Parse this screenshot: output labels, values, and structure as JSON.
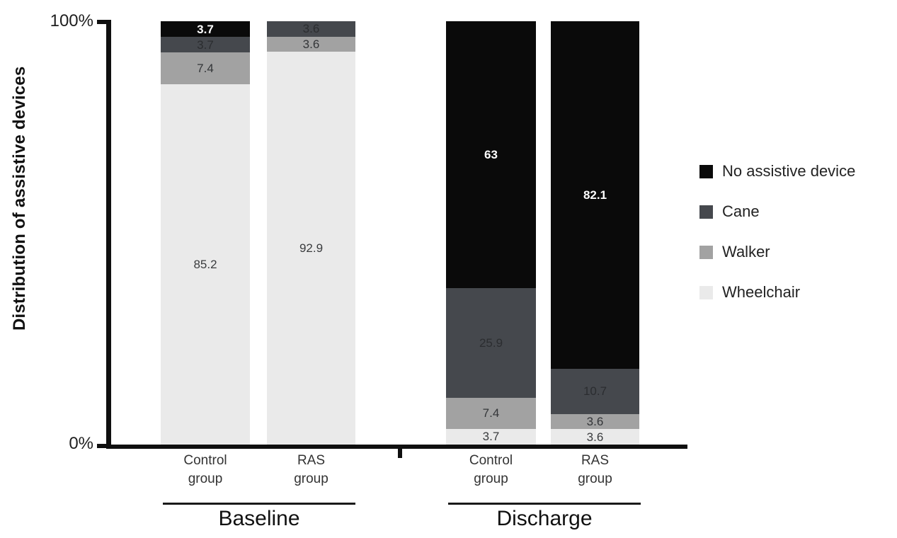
{
  "figure": {
    "background": "#ffffff",
    "axis_color": "#0f0f0f"
  },
  "chart_data": {
    "type": "bar",
    "stacked": true,
    "unit": "percent",
    "ylabel": "Distribution of assistive devices",
    "ylim": [
      0,
      100
    ],
    "ytick_labels": [
      "0%",
      "100%"
    ],
    "grid": false,
    "legend_position": "right",
    "groups": [
      "Baseline",
      "Discharge"
    ],
    "categories": [
      {
        "group": "Baseline",
        "label_lines": [
          "Control",
          "group"
        ]
      },
      {
        "group": "Baseline",
        "label_lines": [
          "RAS",
          "group"
        ]
      },
      {
        "group": "Discharge",
        "label_lines": [
          "Control",
          "group"
        ]
      },
      {
        "group": "Discharge",
        "label_lines": [
          "RAS",
          "group"
        ]
      }
    ],
    "series": [
      {
        "name": "No assistive device",
        "color": "#0a0a0a",
        "label_color": "#ffffff",
        "values": [
          3.7,
          0,
          63,
          82.1
        ]
      },
      {
        "name": "Cane",
        "color": "#45484d",
        "label_color": "#2b2d30",
        "values": [
          3.7,
          3.6,
          25.9,
          10.7
        ]
      },
      {
        "name": "Walker",
        "color": "#a2a2a2",
        "label_color": "#333538",
        "values": [
          7.4,
          3.6,
          7.4,
          3.6
        ]
      },
      {
        "name": "Wheelchair",
        "color": "#eaeaea",
        "label_color": "#3a3c3e",
        "values": [
          85.2,
          92.9,
          3.7,
          3.6
        ]
      }
    ]
  }
}
